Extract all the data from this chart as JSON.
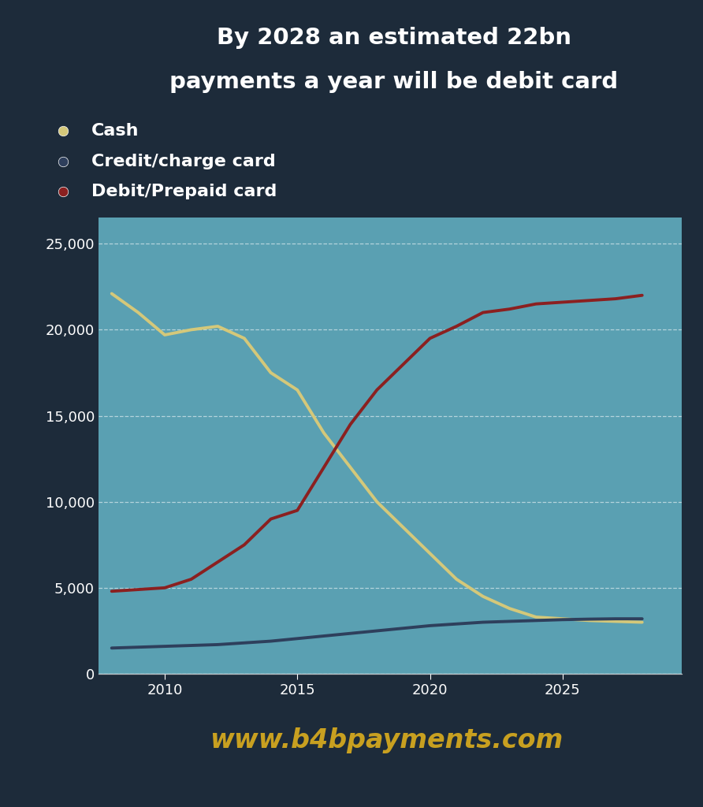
{
  "title_line1": "By 2028 an estimated 22bn",
  "title_line2": "payments a year will be debit card",
  "header_bg": "#1d2b3a",
  "chart_bg": "#5aa0b2",
  "footer_bg": "#1d2b3a",
  "website": "www.b4bpayments.com",
  "website_color": "#c8a020",
  "title_color": "#ffffff",
  "cash_color": "#d4c87a",
  "credit_color": "#2e3f5c",
  "debit_color": "#8b2020",
  "years": [
    2008,
    2009,
    2010,
    2011,
    2012,
    2013,
    2014,
    2015,
    2016,
    2017,
    2018,
    2019,
    2020,
    2021,
    2022,
    2023,
    2024,
    2025,
    2026,
    2027,
    2028
  ],
  "cash": [
    22100,
    21000,
    19700,
    20000,
    20200,
    19500,
    17500,
    16500,
    14000,
    12000,
    10000,
    8500,
    7000,
    5500,
    4500,
    3800,
    3300,
    3200,
    3100,
    3050,
    3000
  ],
  "credit": [
    1500,
    1550,
    1600,
    1650,
    1700,
    1800,
    1900,
    2050,
    2200,
    2350,
    2500,
    2650,
    2800,
    2900,
    3000,
    3050,
    3100,
    3150,
    3180,
    3200,
    3200
  ],
  "debit": [
    4800,
    4900,
    5000,
    5500,
    6500,
    7500,
    9000,
    9500,
    12000,
    14500,
    16500,
    18000,
    19500,
    20200,
    21000,
    21200,
    21500,
    21600,
    21700,
    21800,
    22000
  ],
  "yticks": [
    0,
    5000,
    10000,
    15000,
    20000,
    25000
  ],
  "ylim": [
    0,
    26500
  ],
  "xlim": [
    2007.5,
    2029.5
  ],
  "xticks": [
    2010,
    2015,
    2020,
    2025
  ],
  "legend_items": [
    {
      "label": "Cash",
      "color": "#d4c87a"
    },
    {
      "label": "Credit/charge card",
      "color": "#2e3f5c"
    },
    {
      "label": "Debit/Prepaid card",
      "color": "#8b2020"
    }
  ]
}
